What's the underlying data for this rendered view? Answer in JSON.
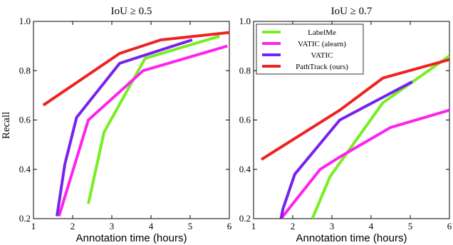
{
  "figure": {
    "shared_ylabel": "Recall"
  },
  "chart_data": [
    {
      "type": "line",
      "title": "IoU ≥ 0.5",
      "xlabel": "Annotation time (hours)",
      "ylabel": "Recall",
      "xlim": [
        1,
        6
      ],
      "ylim": [
        0.2,
        1.0
      ],
      "x_ticks": [
        "1",
        "2",
        "3",
        "4",
        "5",
        "6"
      ],
      "y_ticks": [
        "0.2",
        "0.4",
        "0.6",
        "0.8",
        "1.0"
      ],
      "grid": false,
      "legend": null,
      "series": [
        {
          "name": "LabelMe",
          "color": "#77ee22",
          "points": [
            [
              2.4,
              0.26
            ],
            [
              2.8,
              0.55
            ],
            [
              3.85,
              0.85
            ],
            [
              5.75,
              0.94
            ]
          ]
        },
        {
          "name": "VATIC (alearn)",
          "color": "#ff22ee",
          "points": [
            [
              1.65,
              0.21
            ],
            [
              2.4,
              0.6
            ],
            [
              3.8,
              0.8
            ],
            [
              5.95,
              0.9
            ]
          ]
        },
        {
          "name": "VATIC",
          "color": "#7722ee",
          "points": [
            [
              1.6,
              0.21
            ],
            [
              1.8,
              0.42
            ],
            [
              2.1,
              0.61
            ],
            [
              3.2,
              0.83
            ],
            [
              5.05,
              0.925
            ]
          ]
        },
        {
          "name": "PathTrack (ours)",
          "color": "#ee2222",
          "points": [
            [
              1.25,
              0.66
            ],
            [
              3.2,
              0.87
            ],
            [
              4.25,
              0.925
            ],
            [
              6.0,
              0.955
            ]
          ]
        }
      ]
    },
    {
      "type": "line",
      "title": "IoU ≥ 0.7",
      "xlabel": "Annotation time (hours)",
      "ylabel": "",
      "xlim": [
        1,
        6
      ],
      "ylim": [
        0.2,
        1.0
      ],
      "x_ticks": [
        "1",
        "2",
        "3",
        "4",
        "5",
        "6"
      ],
      "y_ticks": [
        "0.2",
        "0.4",
        "0.6",
        "0.8",
        "1.0"
      ],
      "grid": false,
      "legend": {
        "position": "top-left",
        "entries": [
          "LabelMe",
          "VATIC (alearn)",
          "VATIC",
          "PathTrack (ours)"
        ]
      },
      "series": [
        {
          "name": "LabelMe",
          "color": "#77ee22",
          "points": [
            [
              2.5,
              0.2
            ],
            [
              2.95,
              0.37
            ],
            [
              4.3,
              0.67
            ],
            [
              6.0,
              0.86
            ]
          ]
        },
        {
          "name": "VATIC (alearn)",
          "color": "#ff22ee",
          "points": [
            [
              1.7,
              0.2
            ],
            [
              2.7,
              0.4
            ],
            [
              3.2,
              0.45
            ],
            [
              4.5,
              0.57
            ],
            [
              6.0,
              0.64
            ]
          ]
        },
        {
          "name": "VATIC",
          "color": "#7722ee",
          "points": [
            [
              1.7,
              0.2
            ],
            [
              1.75,
              0.24
            ],
            [
              2.05,
              0.38
            ],
            [
              3.2,
              0.6
            ],
            [
              5.05,
              0.755
            ]
          ]
        },
        {
          "name": "PathTrack (ours)",
          "color": "#ee2222",
          "points": [
            [
              1.2,
              0.44
            ],
            [
              3.2,
              0.64
            ],
            [
              4.3,
              0.77
            ],
            [
              6.0,
              0.845
            ]
          ]
        }
      ]
    }
  ]
}
